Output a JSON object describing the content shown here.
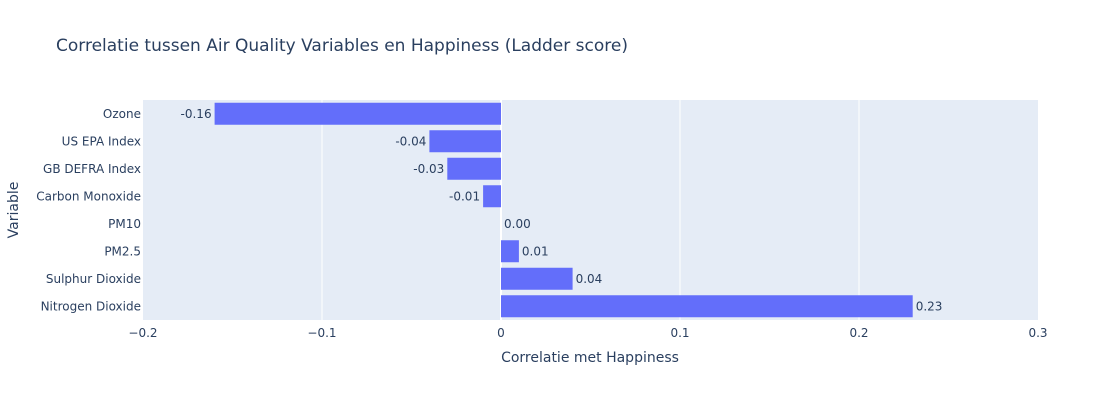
{
  "chart_data": {
    "type": "bar",
    "orientation": "horizontal",
    "title": "Correlatie tussen Air Quality Variables en Happiness (Ladder score)",
    "xlabel": "Correlatie met Happiness",
    "ylabel": "Variable",
    "xlim": [
      -0.2,
      0.3
    ],
    "x_ticks": [
      -0.2,
      -0.1,
      0,
      0.1,
      0.2,
      0.3
    ],
    "x_tick_labels": [
      "−0.2",
      "−0.1",
      "0",
      "0.1",
      "0.2",
      "0.3"
    ],
    "grid": true,
    "bar_color": "#636efa",
    "plot_bg": "#e5ecf6",
    "categories": [
      "Ozone",
      "US EPA Index",
      "GB DEFRA Index",
      "Carbon Monoxide",
      "PM10",
      "PM2.5",
      "Sulphur Dioxide",
      "Nitrogen Dioxide"
    ],
    "values": [
      -0.16,
      -0.04,
      -0.03,
      -0.01,
      0.0,
      0.01,
      0.04,
      0.23
    ],
    "value_labels": [
      "-0.16",
      "-0.04",
      "-0.03",
      "-0.01",
      "0.00",
      "0.01",
      "0.04",
      "0.23"
    ]
  }
}
